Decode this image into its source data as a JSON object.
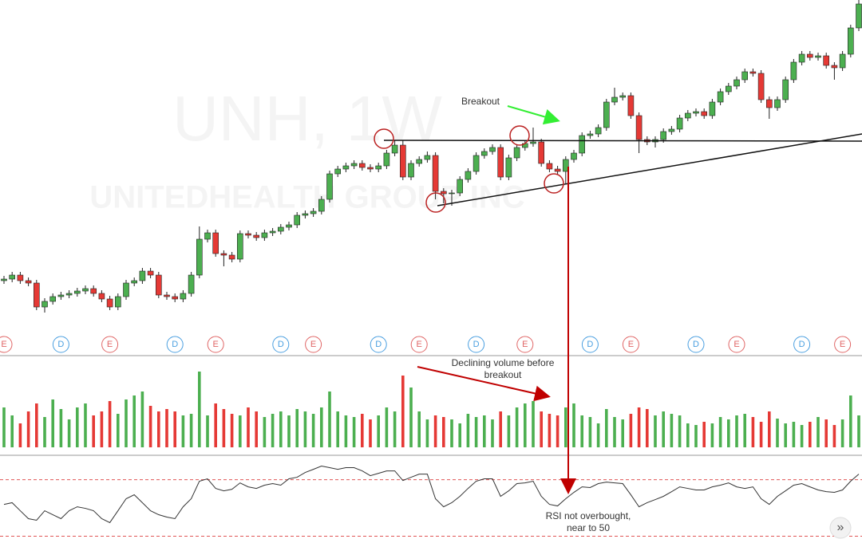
{
  "chart_data": {
    "type": "candlestick",
    "watermark": {
      "symbol": "UNH, 1W",
      "name": "UNITEDHEALTH GROUP INC"
    },
    "up_color": "#4caf50",
    "down_color": "#e53935",
    "ylim": [
      0,
      420
    ],
    "open": [
      68,
      70,
      75,
      68,
      65,
      35,
      42,
      48,
      50,
      52,
      55,
      58,
      52,
      45,
      35,
      48,
      65,
      68,
      80,
      75,
      50,
      48,
      45,
      52,
      75,
      120,
      128,
      102,
      100,
      95,
      127,
      125,
      122,
      128,
      130,
      135,
      138,
      150,
      152,
      155,
      170,
      202,
      208,
      212,
      215,
      210,
      208,
      212,
      228,
      238,
      198,
      215,
      220,
      225,
      180,
      177,
      178,
      195,
      205,
      225,
      230,
      235,
      198,
      222,
      235,
      240,
      242,
      215,
      208,
      205,
      220,
      228,
      250,
      252,
      260,
      292,
      298,
      300,
      275,
      245,
      242,
      245,
      255,
      258,
      272,
      278,
      280,
      275,
      292,
      305,
      312,
      320,
      330,
      328,
      295,
      285,
      295,
      320,
      342,
      352,
      348,
      350,
      338,
      335,
      352,
      385
    ],
    "high": [
      74,
      79,
      79,
      72,
      69,
      46,
      52,
      54,
      56,
      59,
      62,
      62,
      56,
      49,
      52,
      69,
      72,
      84,
      84,
      79,
      54,
      52,
      56,
      79,
      136,
      132,
      132,
      106,
      104,
      131,
      131,
      129,
      132,
      134,
      139,
      142,
      154,
      156,
      159,
      174,
      206,
      212,
      216,
      219,
      219,
      214,
      216,
      232,
      244,
      244,
      219,
      224,
      230,
      229,
      184,
      182,
      199,
      209,
      229,
      234,
      239,
      239,
      226,
      239,
      244,
      260,
      246,
      219,
      212,
      224,
      232,
      254,
      256,
      264,
      296,
      310,
      304,
      304,
      279,
      249,
      249,
      259,
      262,
      276,
      282,
      284,
      284,
      296,
      309,
      316,
      324,
      334,
      334,
      332,
      299,
      299,
      324,
      346,
      356,
      356,
      354,
      354,
      342,
      356,
      389,
      420
    ],
    "low": [
      64,
      66,
      64,
      61,
      31,
      28,
      38,
      44,
      46,
      48,
      51,
      48,
      41,
      31,
      31,
      44,
      61,
      64,
      71,
      46,
      44,
      41,
      41,
      48,
      71,
      116,
      98,
      86,
      91,
      91,
      121,
      118,
      118,
      124,
      126,
      131,
      134,
      146,
      148,
      151,
      166,
      198,
      204,
      208,
      206,
      204,
      204,
      208,
      224,
      194,
      194,
      211,
      216,
      170,
      165,
      162,
      174,
      191,
      201,
      221,
      226,
      194,
      194,
      218,
      231,
      236,
      211,
      204,
      201,
      190,
      216,
      224,
      246,
      248,
      256,
      288,
      294,
      271,
      228,
      238,
      235,
      241,
      251,
      254,
      268,
      274,
      271,
      271,
      288,
      301,
      308,
      316,
      324,
      291,
      271,
      281,
      291,
      316,
      338,
      344,
      344,
      334,
      320,
      331,
      348,
      381
    ],
    "close": [
      70,
      75,
      68,
      65,
      35,
      42,
      48,
      50,
      52,
      55,
      58,
      52,
      45,
      35,
      48,
      65,
      68,
      80,
      75,
      50,
      48,
      45,
      52,
      75,
      120,
      128,
      102,
      100,
      95,
      127,
      125,
      122,
      128,
      130,
      135,
      138,
      150,
      152,
      155,
      170,
      202,
      208,
      212,
      215,
      210,
      208,
      212,
      228,
      238,
      198,
      215,
      220,
      225,
      180,
      177,
      178,
      195,
      205,
      225,
      230,
      235,
      198,
      222,
      235,
      240,
      242,
      215,
      208,
      205,
      220,
      228,
      250,
      252,
      260,
      292,
      298,
      300,
      275,
      245,
      242,
      245,
      255,
      258,
      272,
      278,
      280,
      275,
      292,
      305,
      312,
      320,
      330,
      328,
      295,
      285,
      295,
      320,
      342,
      352,
      348,
      350,
      338,
      335,
      352,
      385,
      415
    ],
    "volume": [
      50,
      40,
      30,
      45,
      55,
      38,
      60,
      48,
      35,
      50,
      55,
      40,
      45,
      58,
      42,
      60,
      65,
      70,
      52,
      45,
      48,
      45,
      40,
      42,
      95,
      40,
      55,
      48,
      42,
      40,
      50,
      45,
      38,
      42,
      45,
      40,
      48,
      45,
      42,
      50,
      70,
      45,
      40,
      38,
      42,
      35,
      40,
      50,
      45,
      90,
      75,
      45,
      35,
      40,
      38,
      35,
      30,
      42,
      38,
      40,
      35,
      45,
      40,
      50,
      55,
      58,
      45,
      42,
      40,
      50,
      55,
      40,
      38,
      30,
      48,
      38,
      35,
      42,
      50,
      48,
      40,
      45,
      42,
      40,
      30,
      28,
      32,
      30,
      38,
      35,
      40,
      42,
      38,
      32,
      45,
      36,
      30,
      32,
      28,
      32,
      38,
      35,
      28,
      35,
      65,
      40
    ],
    "volume_ylim": [
      0,
      116
    ],
    "rsi": [
      52.5,
      53.7,
      48.0,
      42.4,
      41.3,
      48.0,
      45.2,
      42.4,
      48.0,
      50.8,
      49.7,
      48.0,
      42.4,
      39.6,
      48.0,
      56.5,
      59.3,
      53.7,
      48.0,
      45.2,
      43.5,
      42.4,
      50.8,
      56.5,
      68.9,
      70.6,
      63.8,
      62.1,
      63.2,
      67.7,
      64.9,
      63.8,
      66.1,
      67.2,
      66.1,
      70.6,
      71.7,
      75.1,
      77.3,
      79.6,
      78.5,
      77.3,
      78.5,
      78.5,
      76.2,
      72.8,
      74.5,
      76.2,
      76.2,
      69.4,
      71.7,
      73.9,
      73.9,
      56.5,
      50.8,
      53.7,
      58.2,
      63.8,
      68.9,
      70.6,
      70.6,
      58.2,
      62.1,
      67.2,
      67.7,
      68.9,
      58.2,
      52.5,
      51.4,
      56.5,
      61.0,
      64.9,
      64.4,
      67.2,
      68.3,
      67.7,
      67.2,
      59.3,
      50.8,
      53.7,
      55.9,
      58.2,
      61.5,
      64.9,
      63.8,
      62.7,
      62.7,
      64.9,
      66.1,
      67.7,
      64.9,
      63.8,
      64.9,
      56.5,
      52.5,
      58.2,
      62.1,
      66.1,
      67.2,
      64.9,
      62.7,
      61.5,
      61.0,
      62.7,
      68.9,
      73.9
    ],
    "rsi_ylim": [
      28,
      85
    ],
    "rsi_levels": [
      30,
      70
    ],
    "rsi_color": "#333333",
    "events": [
      {
        "index": 0,
        "label": "E"
      },
      {
        "index": 7,
        "label": "D"
      },
      {
        "index": 13,
        "label": "E"
      },
      {
        "index": 21,
        "label": "D"
      },
      {
        "index": 26,
        "label": "E"
      },
      {
        "index": 34,
        "label": "D"
      },
      {
        "index": 38,
        "label": "E"
      },
      {
        "index": 46,
        "label": "D"
      },
      {
        "index": 51,
        "label": "E"
      },
      {
        "index": 58,
        "label": "D"
      },
      {
        "index": 64,
        "label": "E"
      },
      {
        "index": 72,
        "label": "D"
      },
      {
        "index": 77,
        "label": "E"
      },
      {
        "index": 85,
        "label": "D"
      },
      {
        "index": 90,
        "label": "E"
      },
      {
        "index": 98,
        "label": "D"
      },
      {
        "index": 103,
        "label": "E"
      }
    ],
    "event_colors": {
      "D": "#4a9fe0",
      "E": "#e06666"
    },
    "annotations": {
      "breakout": "Breakout",
      "volume": [
        "Declining volume before",
        "breakout"
      ],
      "rsi": [
        "RSI not overbought,",
        "near to 50"
      ]
    },
    "scroll_button": "»"
  }
}
